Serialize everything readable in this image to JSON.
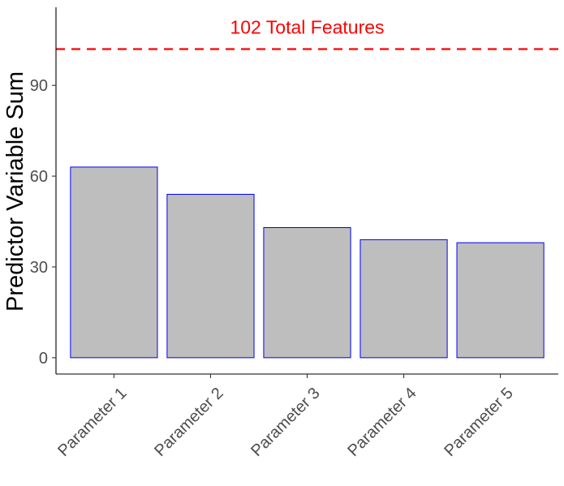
{
  "chart_data": {
    "type": "bar",
    "categories": [
      "Parameter 1",
      "Parameter 2",
      "Parameter 3",
      "Parameter 4",
      "Parameter 5"
    ],
    "values": [
      63,
      54,
      43,
      39,
      38
    ],
    "xlabel": "",
    "ylabel": "Predictor Variable Sum",
    "ylim": [
      -5.4,
      115.8
    ],
    "yticks": [
      0,
      30,
      60,
      90
    ],
    "grid": false,
    "bar_fill": "#bebebe",
    "bar_stroke": "#0000ff",
    "reference_line": {
      "value": 102,
      "style": "dashed",
      "color": "#ff0000",
      "label": "102 Total Features"
    }
  }
}
